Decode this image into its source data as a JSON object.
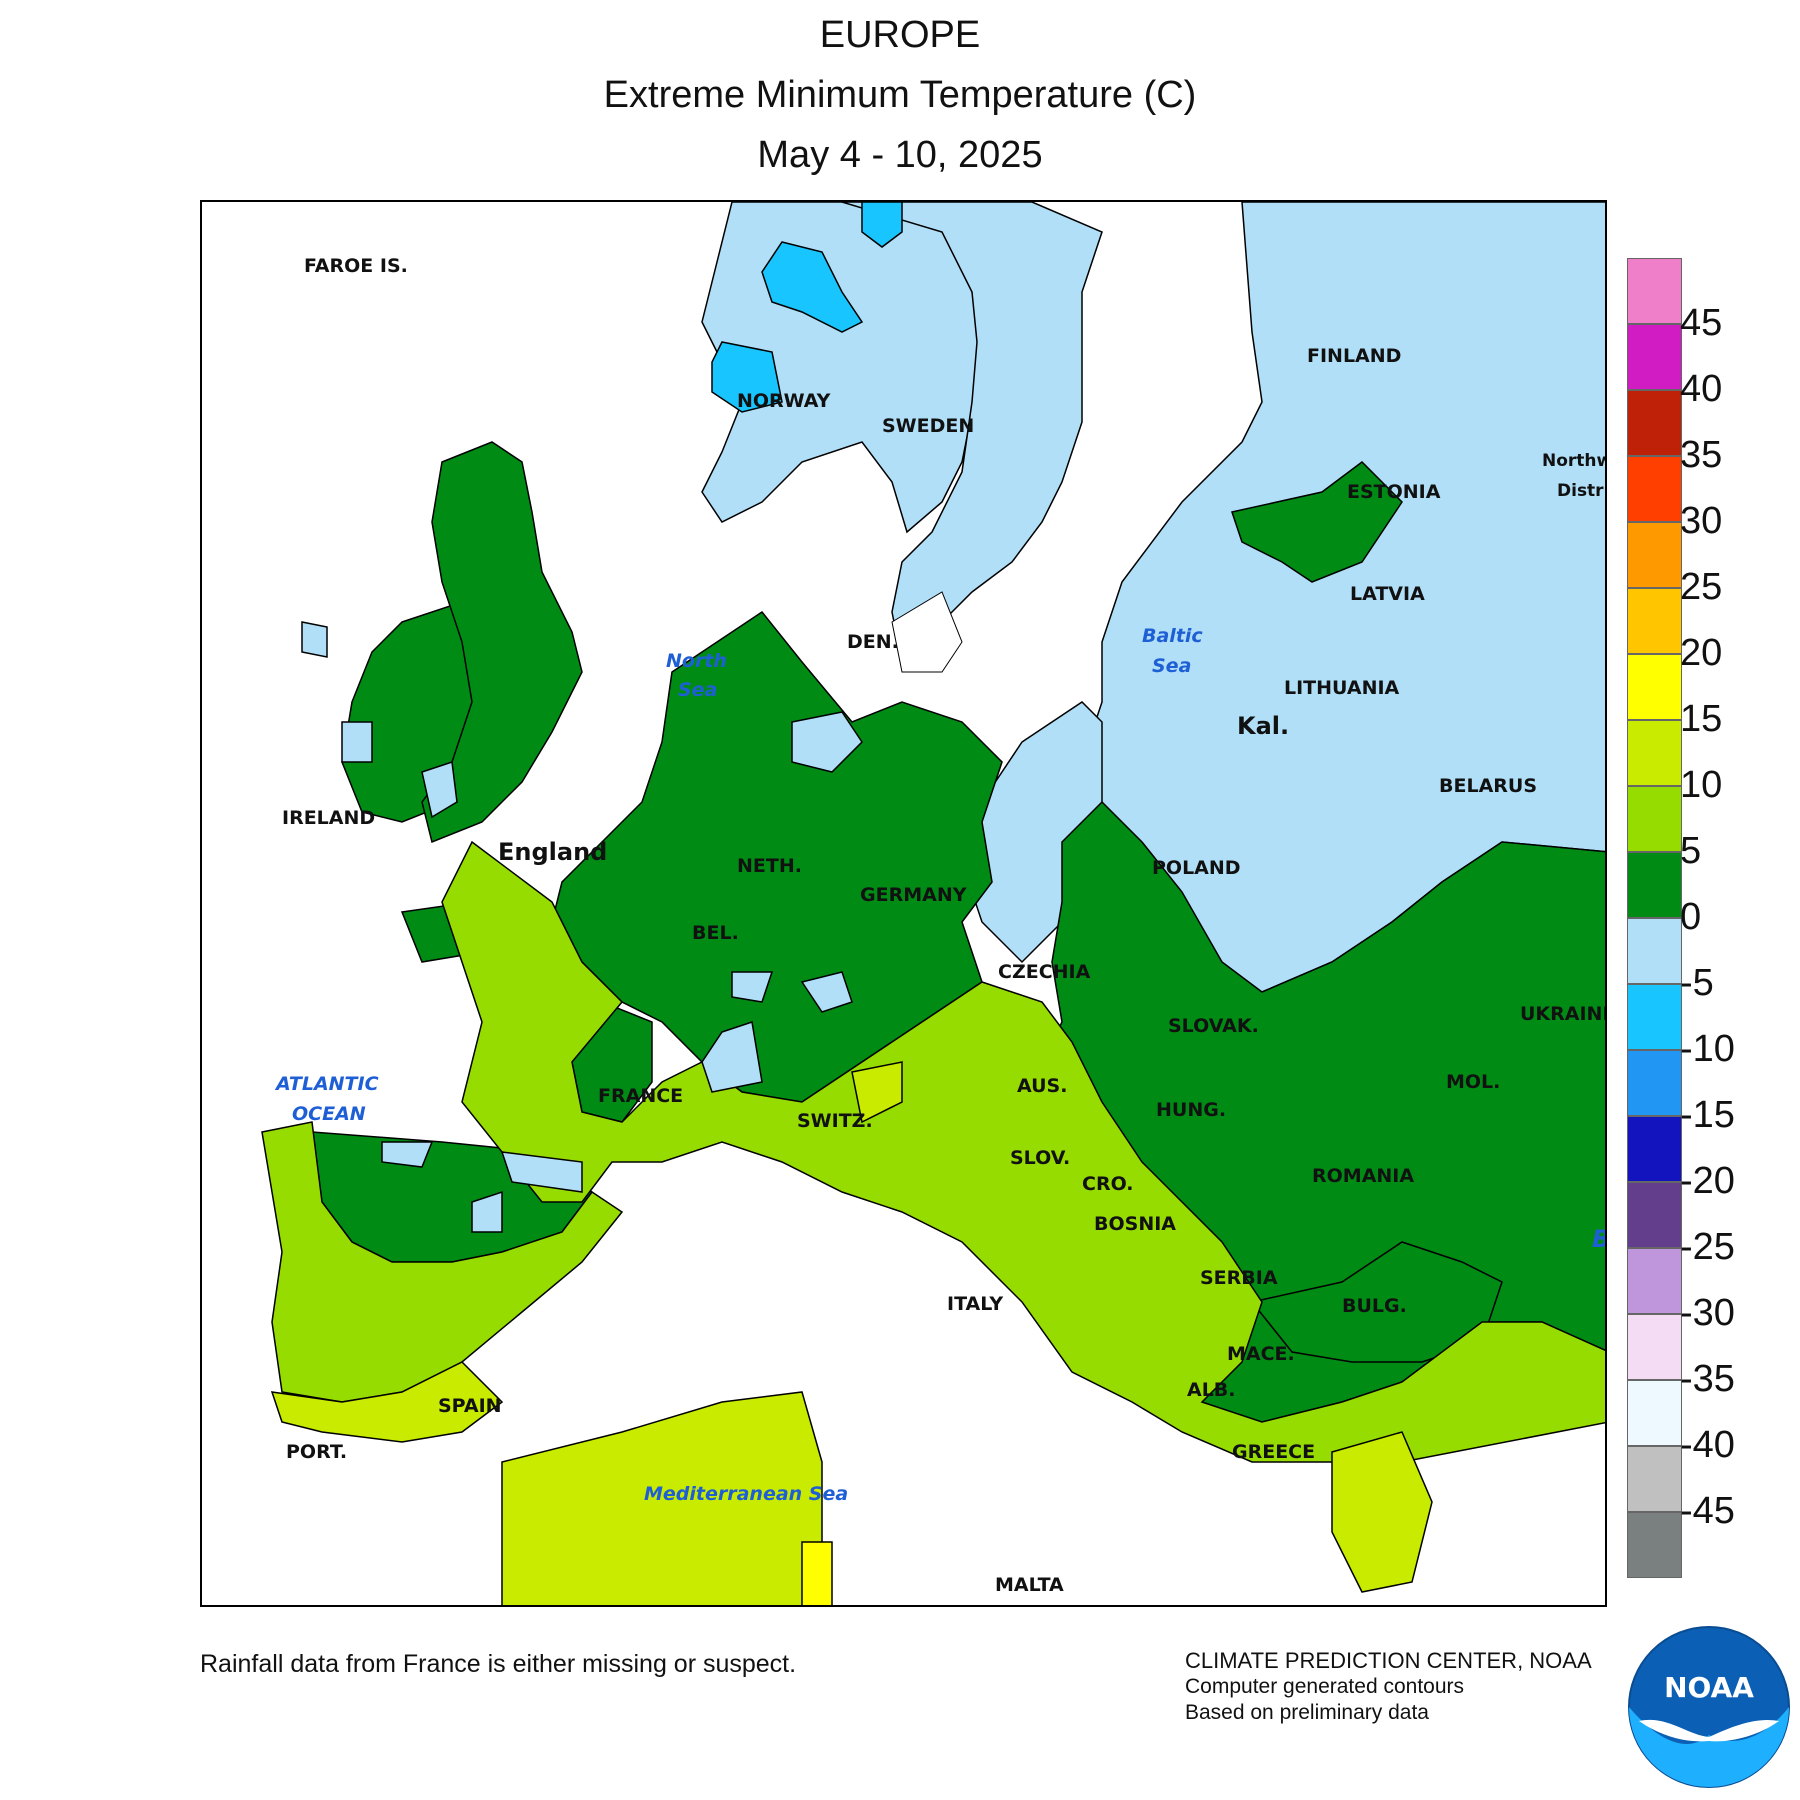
{
  "header": {
    "region": "EUROPE",
    "variable": "Extreme Minimum Temperature (C)",
    "period": "May 4 - 10, 2025"
  },
  "legend": {
    "ticks": [
      "45",
      "40",
      "35",
      "30",
      "25",
      "20",
      "15",
      "10",
      "5",
      "0",
      "-5",
      "-10",
      "-15",
      "-20",
      "-25",
      "-30",
      "-35",
      "-40",
      "-45"
    ],
    "colors": [
      "#ef7fc9",
      "#d11cc4",
      "#bf2008",
      "#ff3f00",
      "#ff9900",
      "#ffc600",
      "#ffff00",
      "#c8eb00",
      "#96dc00",
      "#008c14",
      "#b0dff7",
      "#19c5ff",
      "#2196f3",
      "#1414bf",
      "#633e8c",
      "#bf96dc",
      "#f5dcf5",
      "#eef8ff",
      "#c0c0c0",
      "#7a7f7f"
    ]
  },
  "map": {
    "country_labels": [
      "FAROE IS.",
      "NORWAY",
      "SWEDEN",
      "FINLAND",
      "ESTONIA",
      "LATVIA",
      "LITHUANIA",
      "BELARUS",
      "Kal.",
      "POLAND",
      "DEN.",
      "IRELAND",
      "England",
      "NETH.",
      "BEL.",
      "GERMANY",
      "CZECHIA",
      "SLOVAK.",
      "UKRAINE",
      "AUS.",
      "HUNG.",
      "MOL.",
      "SWITZ.",
      "FRANCE",
      "SLOV.",
      "CRO.",
      "BOSNIA",
      "ROMANIA",
      "SERBIA",
      "BULG.",
      "ITALY",
      "MACE.",
      "ALB.",
      "GREECE",
      "SPAIN",
      "PORT.",
      "MALTA",
      "Northw",
      "Distr"
    ],
    "water_labels": {
      "north_sea": [
        "North",
        "Sea"
      ],
      "baltic_sea": [
        "Baltic",
        "Sea"
      ],
      "atlantic": [
        "ATLANTIC",
        "OCEAN"
      ],
      "mediterranean": "Mediterranean Sea",
      "black_sea_partial": "B"
    }
  },
  "footer": {
    "note": "Rainfall data from France is either missing or suspect.",
    "credit": "CLIMATE PREDICTION CENTER, NOAA",
    "credit_line2": "Computer generated contours",
    "credit_line3": "Based on preliminary data",
    "logo_text": "NOAA"
  }
}
